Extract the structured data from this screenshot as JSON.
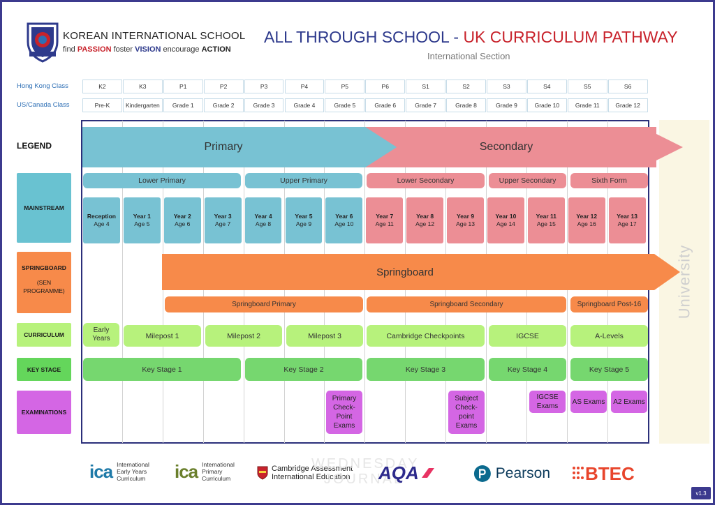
{
  "header": {
    "school_name": "KOREAN INTERNATIONAL SCHOOL",
    "motto": {
      "find": "find",
      "passion": "PASSION",
      "foster": "foster",
      "vision": "VISION",
      "encourage": "encourage",
      "action": "ACTION"
    },
    "crest_text": "HONG KONG",
    "title_part1": "ALL THROUGH SCHOOL - ",
    "title_part2": "UK CURRICULUM PATHWAY",
    "subtitle": "International Section"
  },
  "class_rows": {
    "hk_label": "Hong Kong Class",
    "us_label": "US/Canada Class",
    "hk": [
      "K2",
      "K3",
      "P1",
      "P2",
      "P3",
      "P4",
      "P5",
      "P6",
      "S1",
      "S2",
      "S3",
      "S4",
      "S5",
      "S6"
    ],
    "us": [
      "Pre-K",
      "Kindergarten",
      "Grade 1",
      "Grade 2",
      "Grade 3",
      "Grade 4",
      "Grade 5",
      "Grade 6",
      "Grade 7",
      "Grade 8",
      "Grade 9",
      "Grade 10",
      "Grade 11",
      "Grade 12"
    ]
  },
  "legend": {
    "title": "LEGEND",
    "mainstream": "MAINSTREAM",
    "springboard": "SPRINGBOARD",
    "springboard_sub": "(SEN PROGRAMME)",
    "curriculum": "CURRICULUM",
    "key_stage": "KEY STAGE",
    "examinations": "EXAMINATIONS"
  },
  "bands": {
    "primary": "Primary",
    "secondary": "Secondary",
    "springboard": "Springboard"
  },
  "phases": [
    "Lower Primary",
    "Upper  Primary",
    "Lower Secondary",
    "Upper Secondary",
    "Sixth Form"
  ],
  "years": [
    {
      "name": "Reception",
      "age": "Age 4"
    },
    {
      "name": "Year 1",
      "age": "Age 5"
    },
    {
      "name": "Year 2",
      "age": "Age 6"
    },
    {
      "name": "Year 3",
      "age": "Age 7"
    },
    {
      "name": "Year 4",
      "age": "Age 8"
    },
    {
      "name": "Year 5",
      "age": "Age 9"
    },
    {
      "name": "Year 6",
      "age": "Age 10"
    },
    {
      "name": "Year 7",
      "age": "Age 11"
    },
    {
      "name": "Year 8",
      "age": "Age 12"
    },
    {
      "name": "Year 9",
      "age": "Age 13"
    },
    {
      "name": "Year 10",
      "age": "Age 14"
    },
    {
      "name": "Year 11",
      "age": "Age 15"
    },
    {
      "name": "Year 12",
      "age": "Age 16"
    },
    {
      "name": "Year 13",
      "age": "Age 17"
    }
  ],
  "springboard_phases": [
    "Springboard Primary",
    "Springboard Secondary",
    "Springboard Post-16"
  ],
  "curriculum": [
    "Early Years",
    "Milepost 1",
    "Milepost 2",
    "Milepost 3",
    "Cambridge Checkpoints",
    "IGCSE",
    "A-Levels"
  ],
  "key_stages": [
    "Key Stage 1",
    "Key Stage 2",
    "Key Stage 3",
    "Key Stage 4",
    "Key Stage 5"
  ],
  "exams": [
    "Primary Check-Point Exams",
    "Subject Check-point Exams",
    "IGCSE Exams",
    "AS Exams",
    "A2 Exams"
  ],
  "university": "University",
  "logos": {
    "ica": "ica",
    "ica_early": "International Early Years Curriculum",
    "ica_primary": "International Primary Curriculum",
    "cambridge_line1": "Cambridge Assessment",
    "cambridge_line2": "International Education",
    "aqa": "AQA",
    "pearson": "Pearson",
    "btec": "BTEC"
  },
  "watermark": {
    "line1": "WEDNESDAY",
    "line2": "JOURNAL"
  },
  "version": "v1.3",
  "colors": {
    "primary_blue": "#78c2d3",
    "secondary_pink": "#ec8e95",
    "springboard_orange": "#f78a4a",
    "curriculum_green": "#b7f27c",
    "keystage_green": "#76d76f",
    "exam_purple": "#d466e4",
    "navy": "#2e3a8c",
    "red": "#c8232c"
  }
}
